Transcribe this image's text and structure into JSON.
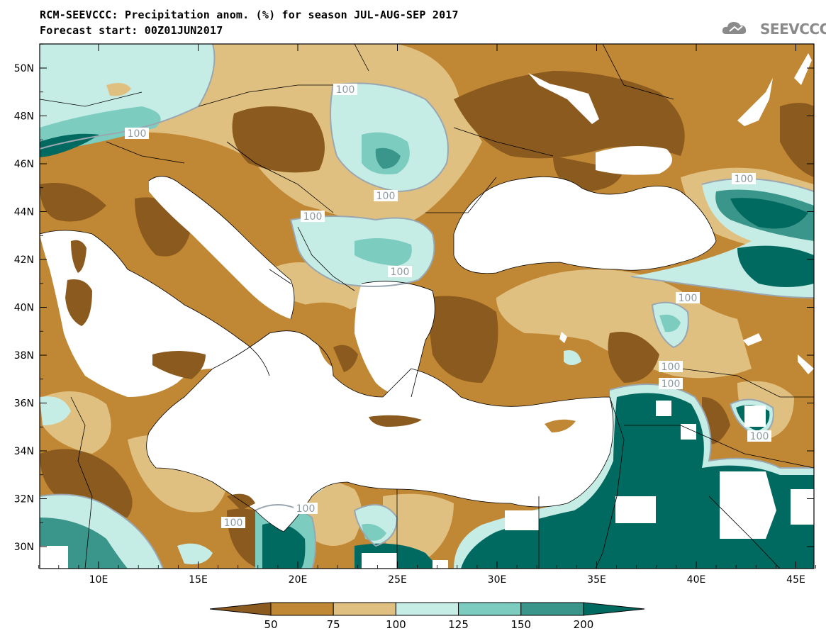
{
  "title_line1": "RCM-SEEVCCC: Precipitation anom. (%) for season JUL-AUG-SEP 2017",
  "title_line2": "Forecast start: 00Z01JUN2017",
  "logo_text": "SEEVCCC",
  "lat_ticks": [
    "50N",
    "48N",
    "46N",
    "44N",
    "42N",
    "40N",
    "38N",
    "36N",
    "34N",
    "32N",
    "30N"
  ],
  "lat_values": [
    50,
    48,
    46,
    44,
    42,
    40,
    38,
    36,
    34,
    32,
    30
  ],
  "lon_ticks": [
    "10E",
    "15E",
    "20E",
    "25E",
    "30E",
    "35E",
    "40E",
    "45E"
  ],
  "lon_values": [
    10,
    15,
    20,
    25,
    30,
    35,
    40,
    45
  ],
  "contour_labels": [
    "100",
    "100",
    "100",
    "100",
    "100",
    "100",
    "100",
    "100",
    "100",
    "100",
    "100",
    "100"
  ],
  "colorbar": {
    "labels": [
      "50",
      "75",
      "100",
      "125",
      "150",
      "200"
    ],
    "colors": [
      "#8b5a1e",
      "#c08734",
      "#e0c080",
      "#c6ece6",
      "#7cccc0",
      "#3a958a",
      "#006a60"
    ]
  },
  "colors": {
    "sea": "#ffffff",
    "very_dry": "#8b5a1e",
    "dry": "#c08734",
    "slightly_dry": "#e0c080",
    "slightly_wet": "#c6ece6",
    "wet": "#7cccc0",
    "very_wet": "#3a958a",
    "extreme_wet": "#006a60"
  }
}
